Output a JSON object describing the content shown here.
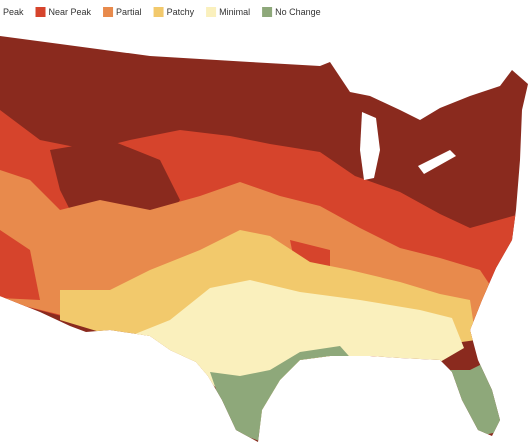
{
  "legend": {
    "items": [
      {
        "label": "Peak",
        "color": "#8a2a1e"
      },
      {
        "label": "Near Peak",
        "color": "#d6442c"
      },
      {
        "label": "Partial",
        "color": "#e88a4c"
      },
      {
        "label": "Patchy",
        "color": "#f2c96c"
      },
      {
        "label": "Minimal",
        "color": "#faf0bd"
      },
      {
        "label": "No Change",
        "color": "#8ea87a"
      }
    ]
  }
}
